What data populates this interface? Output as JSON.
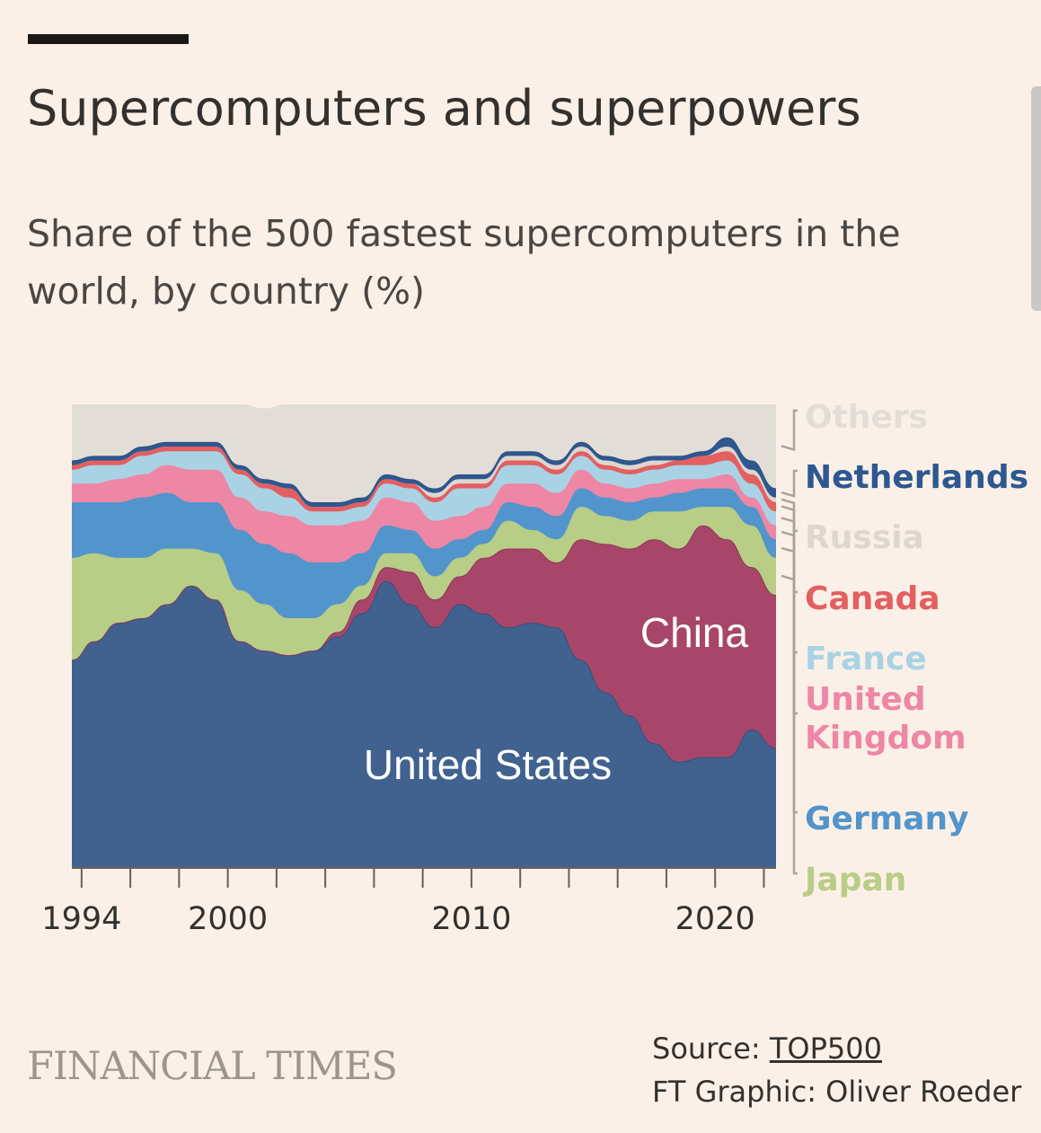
{
  "header": {
    "title": "Supercomputers and superpowers",
    "subtitle": "Share of the 500 fastest supercomputers in the world, by country (%)"
  },
  "footer": {
    "logo_text": "FINANCIAL TIMES",
    "source_prefix": "Source: ",
    "source_link": "TOP500",
    "credit": "FT Graphic: Oliver Roeder"
  },
  "chart_data": {
    "type": "area",
    "stacked": true,
    "ylim": [
      0,
      100
    ],
    "xlim": [
      1993.6,
      2022.5
    ],
    "x_ticks": [
      1994,
      1996,
      1998,
      2000,
      2002,
      2004,
      2006,
      2008,
      2010,
      2012,
      2014,
      2016,
      2018,
      2020,
      2022
    ],
    "x_tick_labels": [
      {
        "year": 1994,
        "label": "1994"
      },
      {
        "year": 2000,
        "label": "2000"
      },
      {
        "year": 2010,
        "label": "2010"
      },
      {
        "year": 2020,
        "label": "2020"
      }
    ],
    "grid": false,
    "legend_position": "right",
    "x": [
      1993.5,
      1994.5,
      1995.5,
      1996.5,
      1997.5,
      1998.5,
      1999.5,
      2000.5,
      2001.5,
      2002.5,
      2003.5,
      2004.5,
      2005.5,
      2006.5,
      2007.5,
      2008.5,
      2009.5,
      2010.5,
      2011.5,
      2012.5,
      2013.5,
      2014.5,
      2015.5,
      2016.5,
      2017.5,
      2018.5,
      2019.5,
      2020.5,
      2021.5,
      2022.5
    ],
    "series": [
      {
        "name": "United States",
        "color": "#41628f",
        "values": [
          45,
          49,
          53,
          54,
          57,
          61,
          58,
          49,
          47,
          46,
          47,
          50,
          55,
          62,
          57,
          52,
          57,
          55,
          52,
          53,
          52,
          45,
          38,
          33,
          27,
          23,
          24,
          24,
          30,
          26
        ]
      },
      {
        "name": "China",
        "color": "#a8466a",
        "values": [
          0,
          0,
          0,
          0,
          0,
          0,
          0,
          0,
          0,
          0,
          0,
          1,
          3,
          3,
          7,
          6,
          6,
          12,
          17,
          16,
          14,
          26,
          32,
          36,
          44,
          46,
          50,
          47,
          35,
          33
        ]
      },
      {
        "name": "Japan",
        "color": "#b8cd86",
        "values": [
          22,
          19,
          14,
          13,
          12,
          8,
          10,
          11,
          10,
          8,
          7,
          6,
          3,
          3,
          4,
          5,
          4,
          3,
          6,
          4,
          5,
          7,
          6,
          6,
          6,
          8,
          4,
          7,
          9,
          8
        ]
      },
      {
        "name": "Germany",
        "color": "#5195cc",
        "values": [
          12,
          11,
          12,
          13,
          12,
          10,
          11,
          13,
          13,
          14,
          12,
          9,
          7,
          6,
          5,
          6,
          4,
          3,
          4,
          5,
          5,
          4,
          4,
          4,
          3,
          4,
          4,
          4,
          4,
          4
        ]
      },
      {
        "name": "United Kingdom",
        "color": "#ee86a5",
        "values": [
          4,
          4,
          5,
          5,
          6,
          7,
          7,
          7,
          7,
          8,
          8,
          8,
          7,
          6,
          6,
          6,
          5,
          5,
          4,
          5,
          5,
          4,
          3,
          3,
          3,
          3,
          2,
          3,
          2,
          3
        ]
      },
      {
        "name": "France",
        "color": "#a9d3e5",
        "values": [
          3,
          4,
          3,
          4,
          3,
          4,
          4,
          5,
          5,
          4,
          3,
          3,
          3,
          3,
          3,
          4,
          6,
          4,
          4,
          4,
          4,
          3,
          3,
          3,
          3,
          3,
          3,
          3,
          3,
          3
        ]
      },
      {
        "name": "Canada",
        "color": "#e45f60",
        "values": [
          1,
          1,
          1,
          1,
          1,
          1,
          1,
          1,
          1,
          2,
          1,
          1,
          1,
          1,
          1,
          1,
          1,
          1,
          1,
          1,
          1,
          1,
          1,
          1,
          1,
          1,
          2,
          2,
          2,
          2
        ]
      },
      {
        "name": "Russia",
        "color": "#ddd7d0",
        "values": [
          0,
          0,
          0,
          0,
          0,
          0,
          0,
          0,
          0,
          0,
          0,
          0,
          0,
          0,
          0,
          1,
          1,
          1,
          1,
          1,
          1,
          1,
          1,
          1,
          1,
          0,
          0,
          1,
          1,
          1
        ]
      },
      {
        "name": "Netherlands",
        "color": "#2d5891",
        "values": [
          1,
          1,
          1,
          1,
          1,
          1,
          1,
          1,
          1,
          1,
          1,
          1,
          1,
          1,
          1,
          1,
          1,
          1,
          1,
          1,
          1,
          1,
          1,
          1,
          1,
          1,
          1,
          2,
          2,
          2
        ]
      },
      {
        "name": "Others",
        "color": "#e2ddd6",
        "values": [
          12,
          11,
          14,
          9,
          8,
          8,
          8,
          13,
          15,
          17,
          21,
          21,
          20,
          15,
          16,
          18,
          15,
          15,
          10,
          10,
          12,
          9,
          11,
          12,
          11,
          11,
          10,
          7,
          12,
          18
        ]
      }
    ],
    "legend": [
      {
        "label": "Others",
        "color": "#e2ddd6"
      },
      {
        "label": "Netherlands",
        "color": "#2d5891"
      },
      {
        "label": "Russia",
        "color": "#ddd7d0"
      },
      {
        "label": "Canada",
        "color": "#e45f60"
      },
      {
        "label": "France",
        "color": "#a9d3e5"
      },
      {
        "label": "United Kingdom",
        "color": "#ee86a5"
      },
      {
        "label": "Germany",
        "color": "#5195cc"
      },
      {
        "label": "Japan",
        "color": "#b8cd86"
      }
    ],
    "annotations": [
      {
        "text": "China",
        "color": "#ffffff"
      },
      {
        "text": "United States",
        "color": "#ffffff"
      }
    ]
  }
}
